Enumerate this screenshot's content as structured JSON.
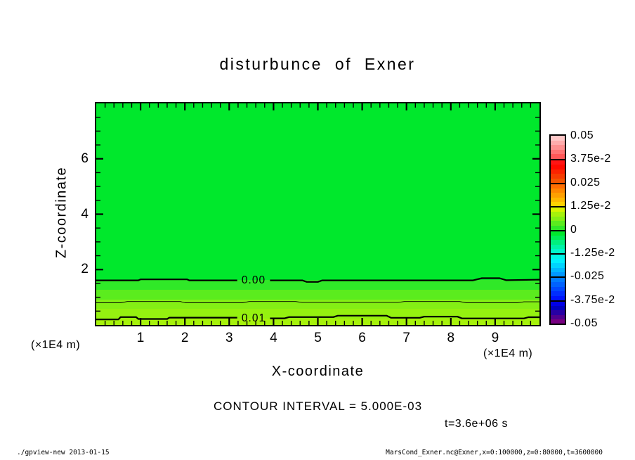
{
  "title": "disturbunce of Exner",
  "annotations": {
    "contour_interval": "CONTOUR INTERVAL = 5.000E-03",
    "time": "t=3.6e+06 s"
  },
  "footer": {
    "left": "./gpview-new  2013-01-15",
    "right": "MarsCond_Exner.nc@Exner,x=0:100000,z=0:80000,t=3600000"
  },
  "chart_data": {
    "type": "contour",
    "title": "disturbunce of Exner",
    "xlabel": "X-coordinate",
    "ylabel": "Z-coordinate",
    "x_unit": "(×1E4 m)",
    "y_unit": "(×1E4 m)",
    "xlim": [
      0,
      10
    ],
    "ylim": [
      0,
      8
    ],
    "x_ticks": [
      1,
      2,
      3,
      4,
      5,
      6,
      7,
      8,
      9
    ],
    "x_minor_step": 0.2,
    "y_ticks": [
      2,
      4,
      6
    ],
    "y_minor_step": 0.5,
    "grid": false,
    "contour_interval_value": 0.005,
    "background_field_color": "#00E82C",
    "background_field_note": "field is ~0 everywhere above z=1.6e4 m",
    "bands": [
      {
        "value_range": "0 to 2.5e-3",
        "z_top": 1.62,
        "color": "#30E828"
      },
      {
        "value_range": "2.5e-3 to 5e-3",
        "z_top": 1.27,
        "color": "#5BEC1E"
      },
      {
        "value_range": "5e-3 to 7.5e-3",
        "z_top": 0.91,
        "color": "#84EF15"
      },
      {
        "value_range": "7.5e-3 to 1e-2",
        "z_top": 0.58,
        "color": "#95F110"
      },
      {
        "value_range": "1e-2 to 1.25e-2",
        "z_top": 0.23,
        "color": "#A6F20B"
      }
    ],
    "contours": [
      {
        "level": "0.00",
        "style": "thick",
        "label": "0.00",
        "label_x": 3.55,
        "label_z": 1.61,
        "segments": [
          [
            [
              0,
              1.61
            ],
            [
              0.95,
              1.61
            ],
            [
              1.0,
              1.645
            ],
            [
              2.05,
              1.645
            ],
            [
              2.1,
              1.61
            ],
            [
              3.18,
              1.61
            ]
          ],
          [
            [
              3.92,
              1.61
            ],
            [
              4.65,
              1.61
            ],
            [
              4.75,
              1.555
            ],
            [
              5.0,
              1.555
            ],
            [
              5.1,
              1.61
            ],
            [
              8.5,
              1.61
            ],
            [
              8.7,
              1.69
            ],
            [
              9.1,
              1.69
            ],
            [
              9.25,
              1.615
            ],
            [
              10,
              1.635
            ]
          ]
        ]
      },
      {
        "level": "0.005",
        "style": "thin",
        "label": null,
        "segments": [
          [
            [
              0,
              0.8
            ],
            [
              0.55,
              0.8
            ],
            [
              0.7,
              0.845
            ],
            [
              1.9,
              0.845
            ],
            [
              2.0,
              0.8
            ],
            [
              3.3,
              0.8
            ],
            [
              3.45,
              0.845
            ],
            [
              4.5,
              0.845
            ],
            [
              4.65,
              0.81
            ],
            [
              6.8,
              0.81
            ],
            [
              6.95,
              0.845
            ],
            [
              8.2,
              0.845
            ],
            [
              8.35,
              0.8
            ],
            [
              9.5,
              0.8
            ],
            [
              9.65,
              0.835
            ],
            [
              10,
              0.835
            ]
          ]
        ]
      },
      {
        "level": "0.01",
        "style": "thick",
        "label": "0.01",
        "label_x": 3.55,
        "label_z": 0.24,
        "segments": [
          [
            [
              0,
              0.2
            ],
            [
              0.5,
              0.2
            ],
            [
              0.55,
              0.285
            ],
            [
              0.9,
              0.285
            ],
            [
              0.95,
              0.215
            ],
            [
              1.6,
              0.215
            ],
            [
              1.65,
              0.265
            ],
            [
              3.18,
              0.265
            ]
          ],
          [
            [
              3.92,
              0.24
            ],
            [
              4.25,
              0.24
            ],
            [
              4.35,
              0.285
            ],
            [
              5.35,
              0.285
            ],
            [
              5.45,
              0.335
            ],
            [
              6.55,
              0.335
            ],
            [
              6.65,
              0.26
            ],
            [
              7.3,
              0.26
            ],
            [
              7.4,
              0.3
            ],
            [
              8.15,
              0.3
            ],
            [
              8.25,
              0.235
            ],
            [
              9.65,
              0.235
            ],
            [
              9.75,
              0.28
            ],
            [
              10,
              0.28
            ]
          ]
        ]
      }
    ],
    "colorbar": {
      "labels": [
        "0.05",
        "3.75e-2",
        "0.025",
        "1.25e-2",
        "0",
        "-1.25e-2",
        "-0.025",
        "-3.75e-2",
        "-0.05"
      ],
      "segments": [
        [
          "#FFC8C8",
          "#FFACAC",
          "#FF9090",
          "#FF7474",
          "#FF5858"
        ],
        [
          "#FF1414",
          "#FF0A00",
          "#FB2300",
          "#F73C00",
          "#F35500"
        ],
        [
          "#FF6E00",
          "#FF8700",
          "#FFA000",
          "#FFB900",
          "#FFD200"
        ],
        [
          "#D8F400",
          "#A6F20B",
          "#84EF15",
          "#5BEC1E",
          "#30E828"
        ],
        [
          "#00E82C",
          "#00EC55",
          "#00F07E",
          "#00F3A7",
          "#00F5CC"
        ],
        [
          "#00F5E8",
          "#00F0FF",
          "#00D4FF",
          "#00B6FF",
          "#0098FF"
        ],
        [
          "#007CFF",
          "#0062FF",
          "#0048FF",
          "#002EFF",
          "#0014FF"
        ],
        [
          "#0000E6",
          "#0000C0",
          "#2800A4",
          "#500090",
          "#780082"
        ]
      ]
    }
  }
}
